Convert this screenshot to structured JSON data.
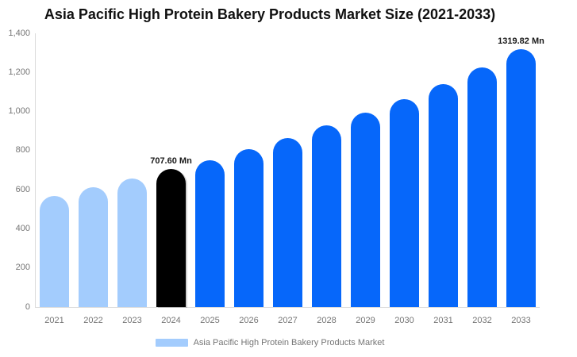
{
  "title": "Asia Pacific High Protein Bakery Products Market Size (2021-2033)",
  "legend": {
    "label": "Asia Pacific High Protein Bakery Products Market"
  },
  "colors": {
    "historical": "#a3ccfd",
    "base": "#000000",
    "forecast": "#0667fa",
    "axis_line": "#dbdbdb",
    "muted_text": "#757575",
    "title_text": "#111111"
  },
  "chart_data": {
    "type": "bar",
    "title": "Asia Pacific High Protein Bakery Products Market Size (2021-2033)",
    "unit": "Mn",
    "categories": [
      "2021",
      "2022",
      "2023",
      "2024",
      "2025",
      "2026",
      "2027",
      "2028",
      "2029",
      "2030",
      "2031",
      "2032",
      "2033"
    ],
    "values": [
      570,
      612,
      657,
      707.6,
      752,
      806,
      864,
      928,
      994,
      1064,
      1141,
      1225,
      1319.82
    ],
    "roles": [
      "historical",
      "historical",
      "historical",
      "base",
      "forecast",
      "forecast",
      "forecast",
      "forecast",
      "forecast",
      "forecast",
      "forecast",
      "forecast",
      "forecast"
    ],
    "annotations": [
      {
        "category": "2024",
        "text": "707.60 Mn"
      },
      {
        "category": "2033",
        "text": "1319.82 Mn"
      }
    ],
    "ylim": [
      0,
      1400
    ],
    "ytick_labels": [
      "0",
      "200",
      "400",
      "600",
      "800",
      "1,000",
      "1,200",
      "1,400"
    ],
    "grid": "off",
    "legend_position": "bottom",
    "legend_entries": [
      "Asia Pacific High Protein Bakery Products Market"
    ],
    "xlabel": "",
    "ylabel": ""
  }
}
